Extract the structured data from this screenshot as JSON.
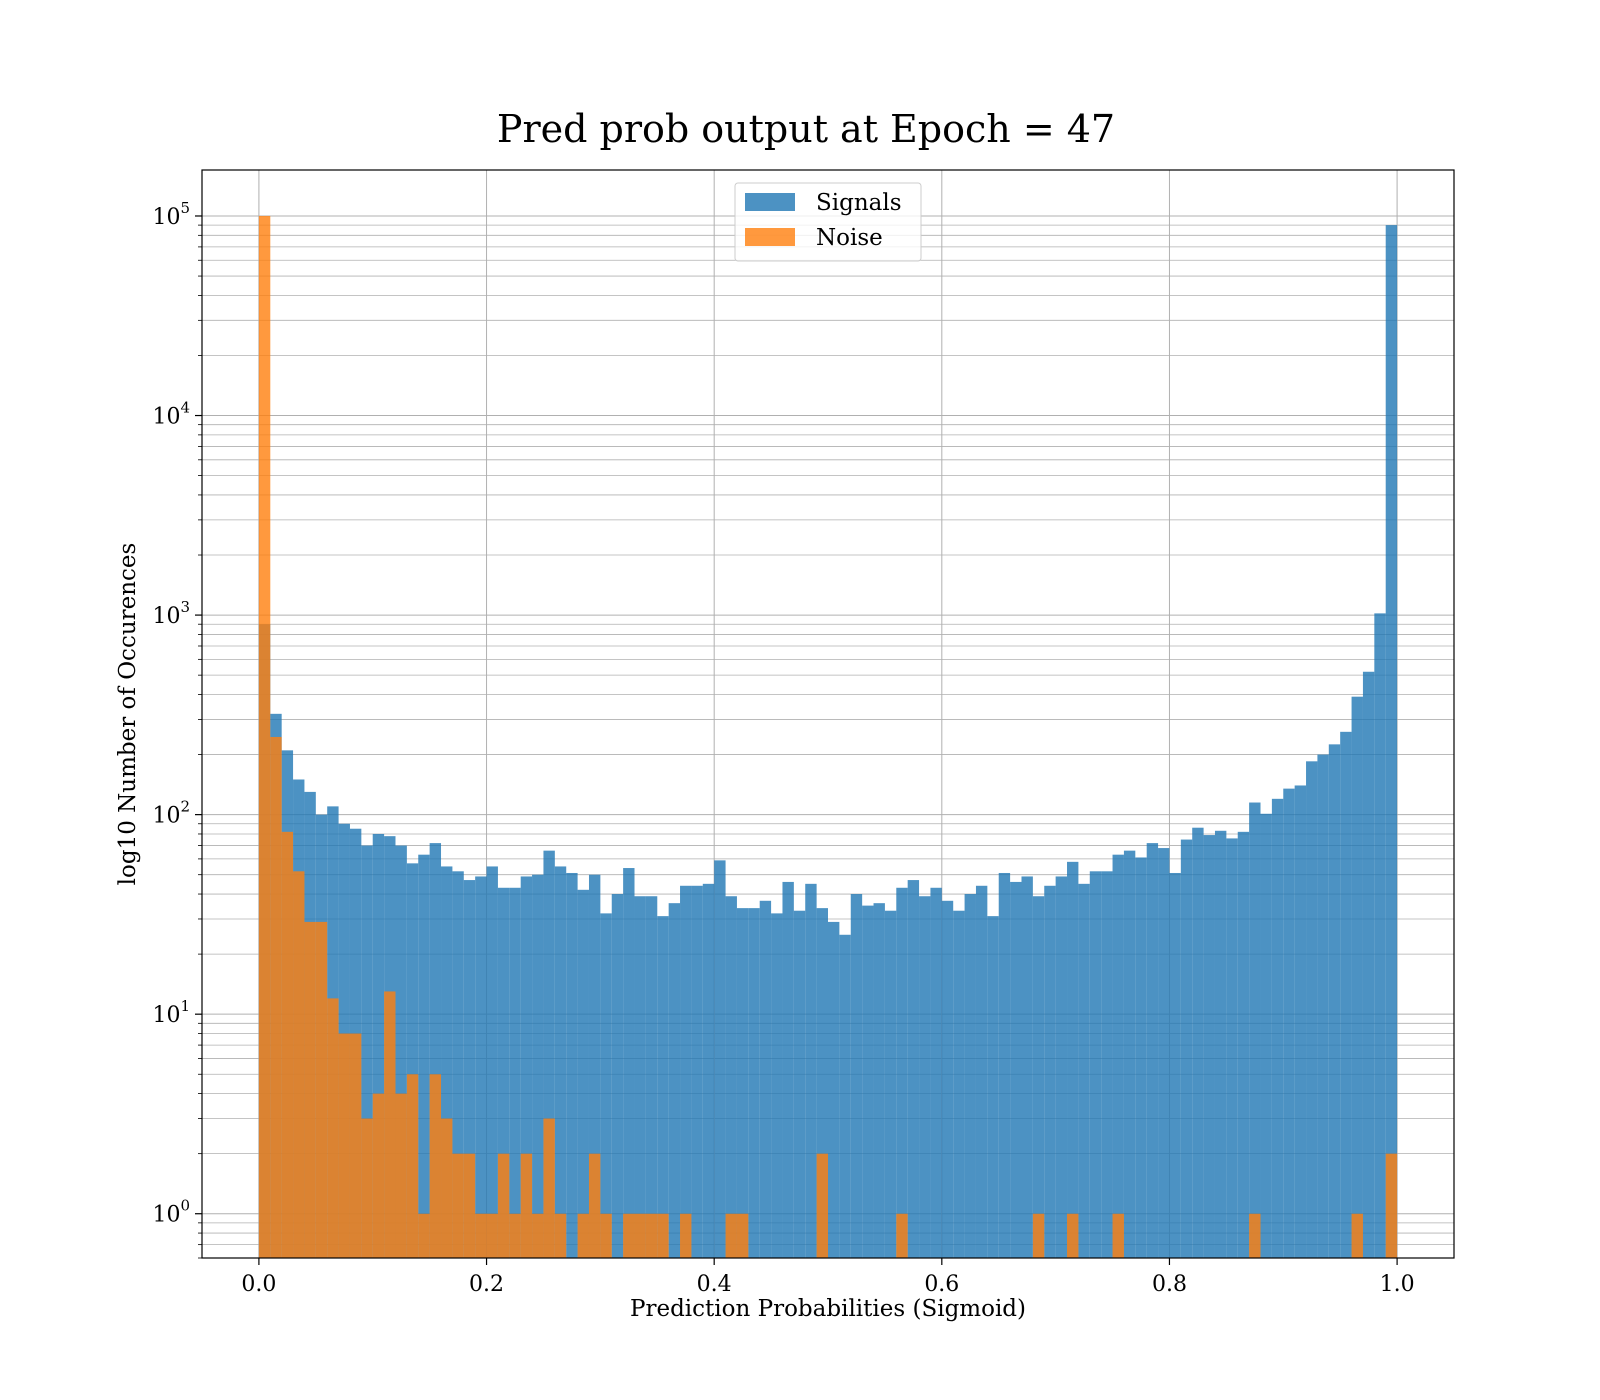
{
  "chart_data": {
    "type": "histogram",
    "title": "Pred prob output at Epoch = 47",
    "xlabel": "Prediction Probabilities (Sigmoid)",
    "ylabel": "log10 Number of Occurences",
    "xlim": [
      -0.05,
      1.05
    ],
    "ylim": [
      0.6,
      170000
    ],
    "yscale": "log",
    "grid": true,
    "legend_position": "top-center",
    "bin_width": 0.01,
    "x_ticks": [
      "0.0",
      "0.2",
      "0.4",
      "0.6",
      "0.8",
      "1.0"
    ],
    "x_tick_values": [
      0,
      0.2,
      0.4,
      0.6,
      0.8,
      1.0
    ],
    "y_ticks": [
      {
        "base": "10",
        "exp": "0",
        "value": 1
      },
      {
        "base": "10",
        "exp": "1",
        "value": 10
      },
      {
        "base": "10",
        "exp": "2",
        "value": 100
      },
      {
        "base": "10",
        "exp": "3",
        "value": 1000
      },
      {
        "base": "10",
        "exp": "4",
        "value": 10000
      },
      {
        "base": "10",
        "exp": "5",
        "value": 100000
      }
    ],
    "series": [
      {
        "name": "Signals",
        "color": "#1f77b4",
        "values": [
          900,
          320,
          210,
          150,
          130,
          100,
          110,
          90,
          85,
          70,
          80,
          78,
          70,
          57,
          63,
          72,
          55,
          52,
          47,
          49,
          55,
          43,
          43,
          49,
          50,
          66,
          55,
          51,
          42,
          50,
          32,
          40,
          54,
          39,
          39,
          31,
          36,
          44,
          44,
          45,
          59,
          39,
          34,
          34,
          37,
          32,
          46,
          33,
          45,
          34,
          29,
          25,
          40,
          35,
          36,
          33,
          43,
          47,
          39,
          43,
          37,
          33,
          40,
          44,
          31,
          51,
          46,
          49,
          39,
          44,
          49,
          58,
          45,
          52,
          52,
          63,
          66,
          61,
          72,
          68,
          51,
          75,
          86,
          79,
          83,
          76,
          82,
          115,
          101,
          120,
          135,
          140,
          185,
          200,
          225,
          260,
          390,
          520,
          1020,
          90000
        ]
      },
      {
        "name": "Noise",
        "color": "#ff7f0e",
        "values": [
          100000,
          245,
          82,
          52,
          29,
          29,
          12,
          8,
          8,
          3,
          4,
          13,
          4,
          5,
          1,
          5,
          3,
          2,
          2,
          1,
          1,
          2,
          1,
          2,
          1,
          3,
          1,
          0,
          1,
          2,
          1,
          0,
          1,
          1,
          1,
          1,
          0,
          1,
          0,
          0,
          0,
          1,
          1,
          0,
          0,
          0,
          0,
          0,
          0,
          2,
          0,
          0,
          0,
          0,
          0,
          0,
          1,
          0,
          0,
          0,
          0,
          0,
          0,
          0,
          0,
          0,
          0,
          0,
          1,
          0,
          0,
          1,
          0,
          0,
          0,
          1,
          0,
          0,
          0,
          0,
          0,
          0,
          0,
          0,
          0,
          0,
          0,
          1,
          0,
          0,
          0,
          0,
          0,
          0,
          0,
          0,
          1,
          0,
          0,
          2
        ]
      }
    ]
  }
}
